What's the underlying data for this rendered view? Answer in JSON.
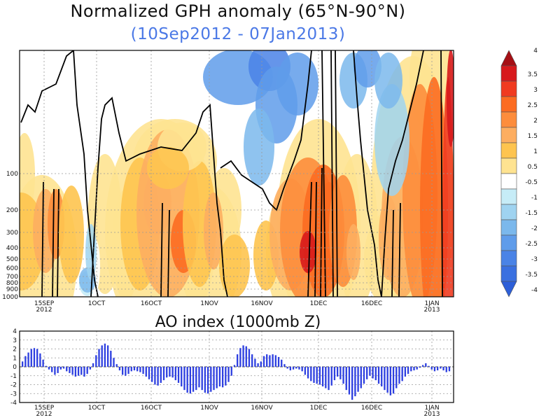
{
  "chart_data": [
    {
      "type": "heatmap",
      "title": "Normalized GPH anomaly (65°N-90°N)",
      "subtitle": "(10Sep2012 - 07Jan2013)",
      "xlabel": "",
      "ylabel": "",
      "y_ticks": [
        "100",
        "200",
        "300",
        "400",
        "500",
        "600",
        "700",
        "800",
        "900",
        "1000"
      ],
      "x_ticks": [
        "15SEP\n2012",
        "1OCT",
        "16OCT",
        "1NOV",
        "16NOV",
        "1DEC",
        "16DEC",
        "1JAN\n2013"
      ],
      "colorbar": {
        "labels": [
          "4",
          "3.5",
          "3",
          "2.5",
          "2",
          "1.5",
          "1",
          "0.5",
          "-0.5",
          "-1",
          "-1.5",
          "-2",
          "-2.5",
          "-3",
          "-3.5",
          "-4"
        ],
        "colors": [
          "#a50f15",
          "#d7191c",
          "#f03b20",
          "#fc6c21",
          "#fd8d3c",
          "#fdae61",
          "#fec44f",
          "#fee391",
          "#ffffff",
          "#c6ecf7",
          "#9fd3f0",
          "#7bb8ec",
          "#5f9cea",
          "#4a83e6",
          "#3a70e0",
          "#2d5fd8"
        ]
      },
      "description_of_field": "Time-pressure cross-section, 1000 to 10 hPa, positive anomalies in yellow-orange-red, negative in blues, black zero contour"
    },
    {
      "type": "bar",
      "title": "AO index (1000mb Z)",
      "ylim": [
        -4,
        4
      ],
      "y_ticks": [
        "4",
        "3",
        "2",
        "1",
        "0",
        "-1",
        "-2",
        "-3",
        "-4"
      ],
      "x_ticks": [
        "15SEP\n2012",
        "1OCT",
        "16OCT",
        "1NOV",
        "16NOV",
        "1DEC",
        "16DEC",
        "1JAN\n2013"
      ],
      "start_date": "10Sep2012",
      "values": [
        0.6,
        1.2,
        1.6,
        2.0,
        2.1,
        2.0,
        1.5,
        0.8,
        0.1,
        -0.3,
        -0.6,
        -0.9,
        -0.7,
        -0.3,
        -0.2,
        -0.5,
        -0.7,
        -0.9,
        -1.1,
        -1.0,
        -0.9,
        -1.1,
        -0.8,
        -0.3,
        0.4,
        1.3,
        2.0,
        2.4,
        2.6,
        2.4,
        1.8,
        1.0,
        0.3,
        -0.4,
        -0.9,
        -1.0,
        -0.8,
        -0.5,
        -0.4,
        -0.5,
        -0.6,
        -0.8,
        -1.1,
        -1.4,
        -1.7,
        -2.0,
        -2.1,
        -1.8,
        -1.5,
        -1.2,
        -1.1,
        -1.2,
        -1.5,
        -1.8,
        -2.2,
        -2.6,
        -2.9,
        -3.0,
        -2.8,
        -2.6,
        -2.3,
        -2.6,
        -2.9,
        -3.0,
        -2.8,
        -2.6,
        -2.4,
        -2.2,
        -2.3,
        -2.1,
        -1.7,
        -1.0,
        0.2,
        1.4,
        2.1,
        2.4,
        2.3,
        2.0,
        1.4,
        0.9,
        0.4,
        0.6,
        1.2,
        1.4,
        1.3,
        1.4,
        1.3,
        1.1,
        0.8,
        0.3,
        -0.2,
        -0.4,
        -0.3,
        -0.2,
        -0.3,
        -0.5,
        -0.9,
        -1.3,
        -1.6,
        -1.8,
        -1.9,
        -2.0,
        -2.2,
        -2.4,
        -2.6,
        -2.1,
        -1.5,
        -1.1,
        -1.4,
        -1.9,
        -2.6,
        -3.1,
        -3.7,
        -3.3,
        -2.8,
        -2.4,
        -1.9,
        -1.4,
        -1.0,
        -1.3,
        -1.5,
        -1.9,
        -2.2,
        -2.6,
        -2.9,
        -3.2,
        -3.0,
        -2.4,
        -1.9,
        -1.6,
        -1.1,
        -0.8,
        -0.5,
        -0.4,
        -0.3,
        -0.1,
        0.2,
        0.4,
        0.1,
        -0.3,
        -0.5,
        -0.4,
        -0.2,
        -0.4,
        -0.6,
        -0.5
      ]
    }
  ]
}
